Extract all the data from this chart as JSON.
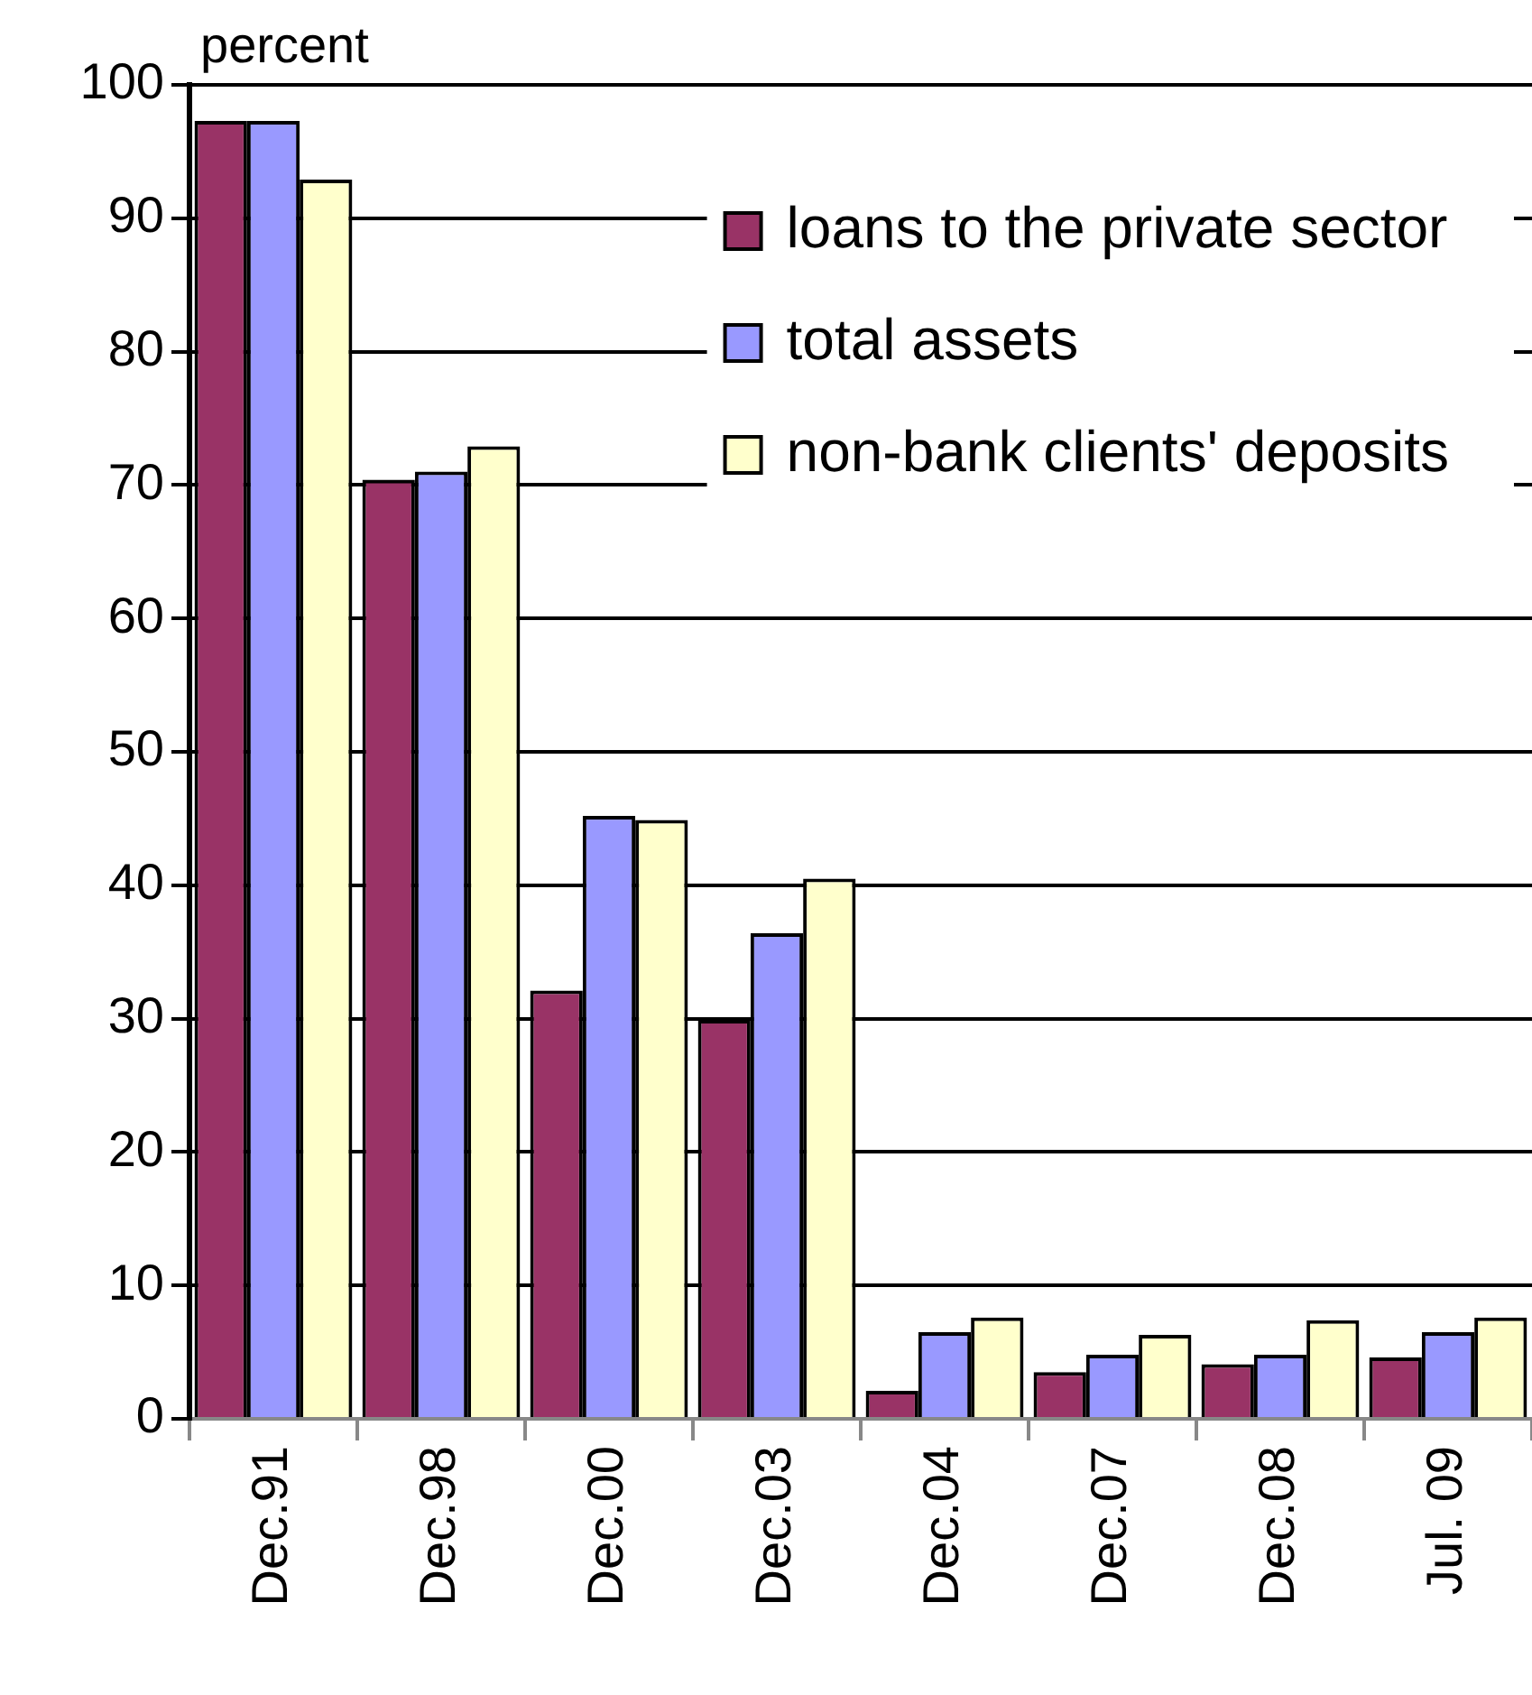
{
  "chart_data": {
    "type": "bar",
    "ylabel": "percent",
    "categories": [
      "Dec.91",
      "Dec.98",
      "Dec.00",
      "Dec.03",
      "Dec.04",
      "Dec.07",
      "Dec.08",
      "Jul. 09"
    ],
    "series": [
      {
        "name": "loans to the private sector",
        "color": "#993366",
        "values": [
          97.3,
          70.4,
          32.1,
          29.9,
          2.1,
          3.5,
          4.1,
          4.6
        ]
      },
      {
        "name": "total assets",
        "color": "#9999ff",
        "values": [
          97.3,
          71.0,
          45.2,
          36.4,
          6.5,
          4.8,
          4.8,
          6.5
        ]
      },
      {
        "name": "non-bank clients' deposits",
        "color": "#ffffcc",
        "values": [
          92.9,
          72.9,
          44.9,
          40.5,
          7.6,
          6.3,
          7.4,
          7.6
        ]
      }
    ],
    "ylim": [
      0,
      100
    ],
    "yticks": [
      0,
      10,
      20,
      30,
      40,
      50,
      60,
      70,
      80,
      90,
      100
    ],
    "grid": "y",
    "legend": "top right"
  }
}
